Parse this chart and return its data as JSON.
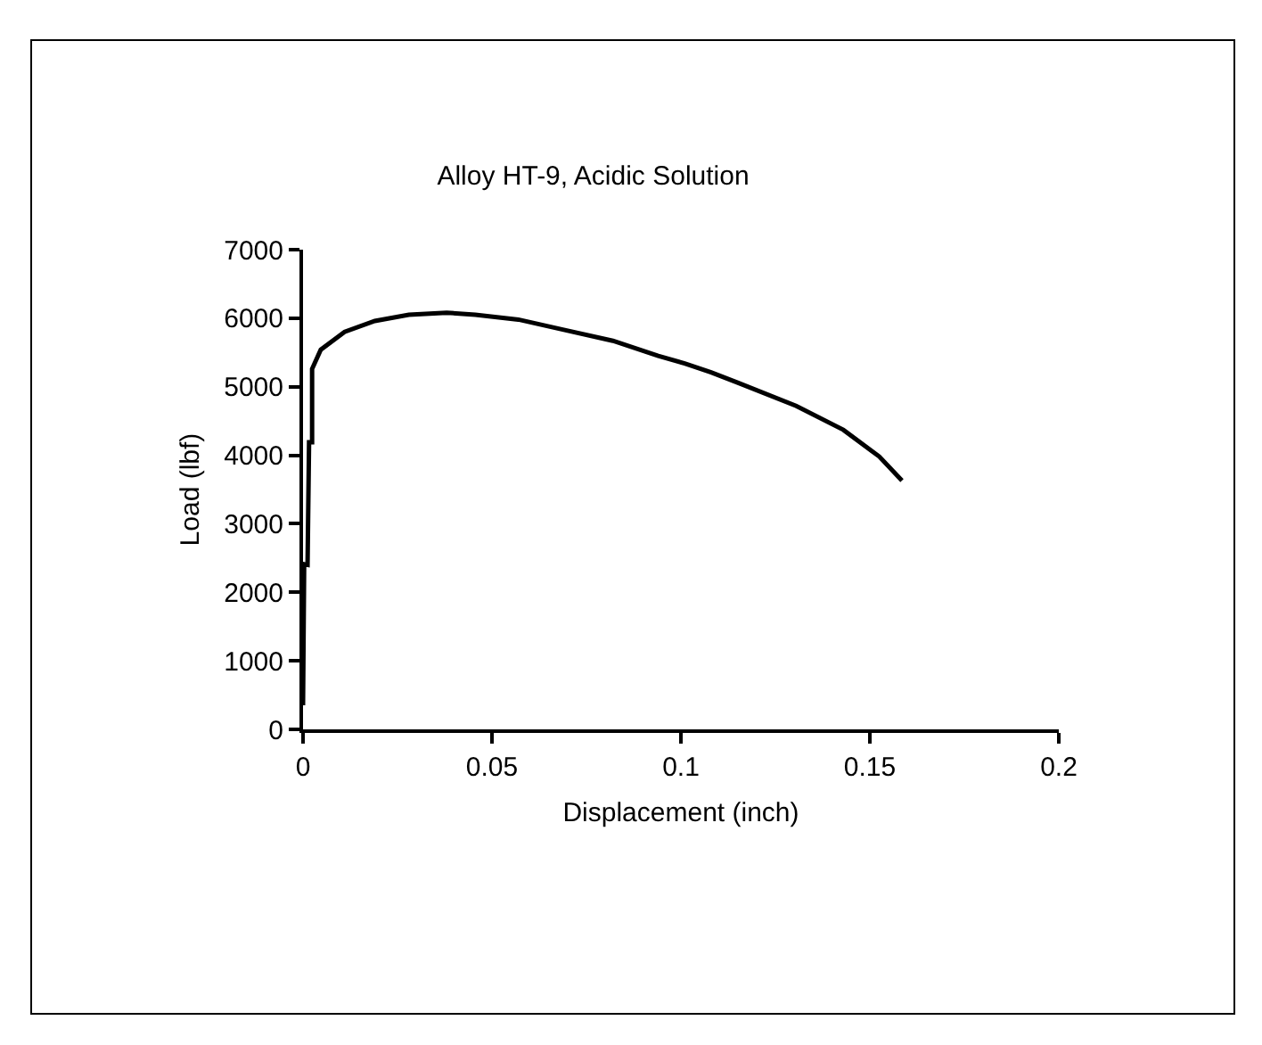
{
  "chart_data": {
    "type": "line",
    "title": "Alloy HT-9, Acidic Solution",
    "xlabel": "Displacement (inch)",
    "ylabel": "Load (lbf)",
    "series": [
      {
        "color": "#000000",
        "x": [
          0,
          0.0003,
          0.0012,
          0.0016,
          0.0024,
          0.0024,
          0.0047,
          0.011,
          0.019,
          0.028,
          0.038,
          0.0456,
          0.057,
          0.069,
          0.082,
          0.094,
          0.101,
          0.108,
          0.115,
          0.1305,
          0.143,
          0.1525,
          0.1585
        ],
        "values": [
          350,
          2410,
          2400,
          4190,
          4190,
          5260,
          5540,
          5800,
          5960,
          6050,
          6080,
          6050,
          5980,
          5830,
          5670,
          5450,
          5340,
          5210,
          5060,
          4720,
          4370,
          3980,
          3630
        ]
      }
    ],
    "xlim": [
      0,
      0.2
    ],
    "xticks": [
      0,
      0.05,
      0.1,
      0.15,
      0.2
    ],
    "ylim": [
      0,
      7000
    ],
    "yticks": [
      0,
      1000,
      2000,
      3000,
      4000,
      5000,
      6000,
      7000
    ],
    "grid": false,
    "marker": "none",
    "line_style": "solid"
  }
}
